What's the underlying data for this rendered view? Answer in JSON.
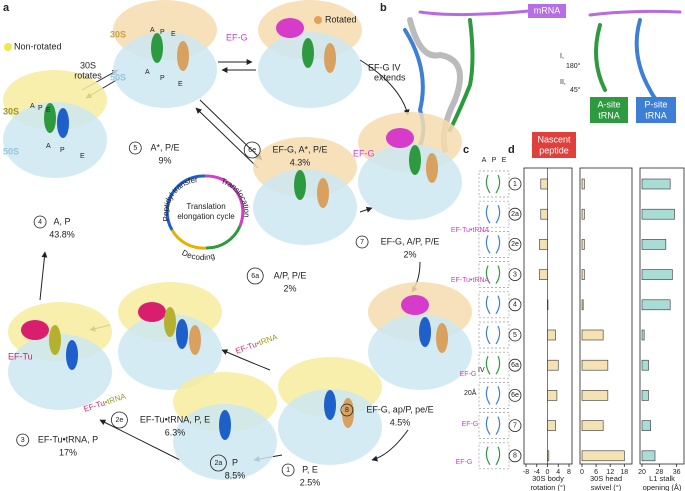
{
  "panel_a": {
    "label": "a",
    "legend": [
      "Rotated",
      "Non-rotated"
    ],
    "rotates": [
      "30S",
      "rotates"
    ],
    "extends": [
      "EF-G IV",
      "extends"
    ],
    "efg": [
      "EF-G",
      "EF-G"
    ],
    "eftu": "EF-Tu",
    "arrow_labels": [
      {
        "factor": "EF-Tu",
        "trna": "•tRNA"
      },
      {
        "factor": "EF-Tu",
        "trna": "•tRNA"
      }
    ],
    "subunits": [
      "30S",
      "50S",
      "30S",
      "50S"
    ],
    "sites": [
      "A",
      "P",
      "E",
      "A",
      "P",
      "E",
      "A",
      "P",
      "E",
      "A",
      "P",
      "E"
    ],
    "states": [
      {
        "number": "5",
        "name": "A*, P/E",
        "percent": "9%"
      },
      {
        "number": "6e",
        "name": "EF-G, A*, P/E",
        "percent": "4.3%"
      },
      {
        "number": "4",
        "name": "A, P",
        "percent": "43.8%"
      },
      {
        "number": "6a",
        "name": "A/P, P/E",
        "percent": "2%"
      },
      {
        "number": "7",
        "name": "EF-G, A/P, P/E",
        "percent": "2%"
      },
      {
        "number": "3",
        "name": "EF-Tu•tRNA, P",
        "percent": "17%"
      },
      {
        "number": "2e",
        "name": "EF-Tu•tRNA, P, E",
        "percent": "6.3%"
      },
      {
        "number": "8",
        "name": "EF-G, ap/P, pe/E",
        "percent": "4.5%"
      },
      {
        "number": "1",
        "name": "P, E",
        "percent": "2.5%"
      },
      {
        "number": "2a",
        "name": "P",
        "percent": "8.5%"
      }
    ],
    "cycle": {
      "title": [
        "Translation",
        "elongation cycle"
      ],
      "steps": [
        "Peptidyl transfer",
        "Translocation",
        "Decoding"
      ]
    }
  },
  "panel_b": {
    "label": "b",
    "mrna": "mRNA",
    "peptide": [
      "Nascent",
      "peptide"
    ],
    "a_site": [
      "A-site",
      "tRNA"
    ],
    "p_site": [
      "P-site",
      "tRNA"
    ],
    "rotations": [
      "I,",
      "180°",
      "II,",
      "45°"
    ]
  },
  "panel_c": {
    "label": "c",
    "sites": [
      "A",
      "P",
      "E"
    ],
    "factors": [
      "EF-Tu•tRNA",
      "EF-Tu•tRNA",
      "EF-G",
      "EF-G",
      "EF-G"
    ],
    "domain": "IV",
    "distance": "20Å"
  },
  "panel_d": {
    "label": "d",
    "rows": [
      "1",
      "2a",
      "2e",
      "3",
      "4",
      "5",
      "6a",
      "6e",
      "7",
      "8"
    ],
    "charts": [
      {
        "title": [
          "30S body",
          "rotation (°)"
        ],
        "color": "#f4e2b4",
        "xlim": [
          -8,
          8
        ],
        "xticks": [
          -8,
          -4,
          0,
          4,
          8
        ],
        "values": [
          -2.5,
          -2.5,
          -3,
          -3,
          0,
          3,
          4,
          3.5,
          3,
          0.5
        ]
      },
      {
        "title": [
          "30S head",
          "swivel (°)"
        ],
        "color": "#f4e2b4",
        "xlim": [
          0,
          20
        ],
        "xticks": [
          0,
          6,
          12,
          18
        ],
        "values": [
          1,
          1,
          1,
          1,
          0.5,
          9,
          11,
          11,
          9,
          18
        ]
      },
      {
        "title": [
          "L1 stalk",
          "opening (Å)"
        ],
        "color": "#a9dcd5",
        "xlim": [
          20,
          38
        ],
        "xticks": [
          20,
          28,
          36
        ],
        "values": [
          33,
          35,
          31,
          34,
          33,
          21,
          23,
          23,
          24,
          26
        ]
      }
    ]
  }
}
